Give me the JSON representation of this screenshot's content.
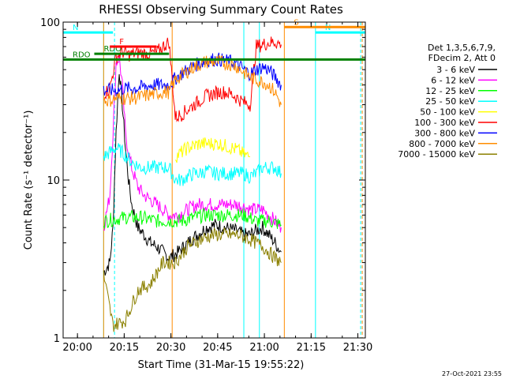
{
  "chart_data": {
    "type": "line",
    "title": "RHESSI Observing Summary Count Rates",
    "xlabel": "Start Time (31-Mar-15 19:55:22)",
    "ylabel": "Count Rate (s⁻¹ detector⁻¹)",
    "yscale": "log",
    "ylim": [
      1,
      100
    ],
    "xlim_minutes_after_start": [
      0,
      97
    ],
    "x_ticks": [
      {
        "label": "20:00",
        "t": 4.6
      },
      {
        "label": "20:15",
        "t": 19.6
      },
      {
        "label": "20:30",
        "t": 34.6
      },
      {
        "label": "20:45",
        "t": 49.6
      },
      {
        "label": "21:00",
        "t": 64.6
      },
      {
        "label": "21:15",
        "t": 79.6
      },
      {
        "label": "21:30",
        "t": 94.6
      }
    ],
    "y_ticks": [
      "1",
      "10",
      "100"
    ],
    "legend_header": [
      "Det 1,3,5,6,7,9,",
      "FDecim 2, Att 0"
    ],
    "legend_position": "right",
    "data_gaps_minutes": [
      [
        0,
        13
      ],
      [
        70,
        97
      ]
    ],
    "series": [
      {
        "name": "3 - 6 keV",
        "color": "#000000",
        "points": [
          [
            13,
            2.6
          ],
          [
            15,
            3.0
          ],
          [
            16,
            5
          ],
          [
            17,
            20
          ],
          [
            18,
            50
          ],
          [
            19,
            30
          ],
          [
            20,
            16
          ],
          [
            21,
            10
          ],
          [
            22,
            7
          ],
          [
            24,
            5
          ],
          [
            26,
            4.5
          ],
          [
            28,
            4
          ],
          [
            30,
            3.8
          ],
          [
            32,
            3.5
          ],
          [
            34,
            3.2
          ],
          [
            37,
            3.5
          ],
          [
            40,
            4
          ],
          [
            43,
            4.5
          ],
          [
            46,
            5
          ],
          [
            49,
            5.2
          ],
          [
            52,
            5
          ],
          [
            55,
            4.8
          ],
          [
            58,
            4.5
          ],
          [
            60,
            4.5
          ],
          [
            62,
            4.8
          ],
          [
            64,
            5
          ],
          [
            66,
            4.5
          ],
          [
            68,
            4
          ],
          [
            70,
            3.5
          ]
        ]
      },
      {
        "name": "6 - 12 keV",
        "color": "#ff00ff",
        "points": [
          [
            13,
            5
          ],
          [
            15,
            8
          ],
          [
            16,
            20
          ],
          [
            17,
            55
          ],
          [
            18,
            60
          ],
          [
            19,
            40
          ],
          [
            20,
            20
          ],
          [
            21,
            15
          ],
          [
            22,
            12
          ],
          [
            24,
            9
          ],
          [
            26,
            8
          ],
          [
            28,
            7.5
          ],
          [
            30,
            7
          ],
          [
            32,
            6.5
          ],
          [
            34,
            6
          ],
          [
            37,
            6
          ],
          [
            40,
            6.5
          ],
          [
            43,
            7
          ],
          [
            46,
            7
          ],
          [
            49,
            7
          ],
          [
            52,
            7
          ],
          [
            55,
            7
          ],
          [
            58,
            6.8
          ],
          [
            60,
            6.5
          ],
          [
            62,
            6.5
          ],
          [
            64,
            6.5
          ],
          [
            66,
            6
          ],
          [
            68,
            5.5
          ],
          [
            70,
            5
          ]
        ]
      },
      {
        "name": "12 - 25 keV",
        "color": "#00ff00",
        "points": [
          [
            13,
            5.5
          ],
          [
            20,
            5.8
          ],
          [
            25,
            5.8
          ],
          [
            30,
            5.5
          ],
          [
            34,
            5.5
          ],
          [
            38,
            5.5
          ],
          [
            42,
            5.8
          ],
          [
            46,
            6
          ],
          [
            50,
            6
          ],
          [
            54,
            6
          ],
          [
            58,
            6
          ],
          [
            62,
            5.5
          ],
          [
            66,
            5.5
          ],
          [
            70,
            5.2
          ]
        ]
      },
      {
        "name": "25 - 50 keV",
        "color": "#00ffff",
        "points": [
          [
            13,
            14
          ],
          [
            15,
            15
          ],
          [
            17,
            16
          ],
          [
            19,
            15
          ],
          [
            22,
            13
          ],
          [
            25,
            12
          ],
          [
            28,
            12
          ],
          [
            31,
            12
          ],
          [
            34,
            12
          ],
          [
            36,
            10
          ],
          [
            38,
            10
          ],
          [
            40,
            10.5
          ],
          [
            42,
            11
          ],
          [
            44,
            11
          ],
          [
            46,
            11.5
          ],
          [
            48,
            11
          ],
          [
            50,
            11
          ],
          [
            52,
            11
          ],
          [
            54,
            11
          ],
          [
            56,
            11
          ],
          [
            58,
            11
          ],
          [
            60,
            10.5
          ],
          [
            62,
            11
          ],
          [
            64,
            12
          ],
          [
            66,
            12
          ],
          [
            68,
            12
          ],
          [
            70,
            11
          ]
        ]
      },
      {
        "name": "50 - 100 keV",
        "color": "#ffff00",
        "points": [
          [
            36,
            14
          ],
          [
            38,
            15
          ],
          [
            40,
            16
          ],
          [
            42,
            16.5
          ],
          [
            44,
            17
          ],
          [
            46,
            17
          ],
          [
            48,
            17
          ],
          [
            50,
            17
          ],
          [
            52,
            16.5
          ],
          [
            54,
            16
          ],
          [
            56,
            15.5
          ],
          [
            58,
            14.5
          ],
          [
            60,
            14
          ]
        ]
      },
      {
        "name": "100 - 300 keV",
        "color": "#ff0000",
        "points": [
          [
            13,
            35
          ],
          [
            15,
            38
          ],
          [
            17,
            60
          ],
          [
            19,
            65
          ],
          [
            21,
            62
          ],
          [
            24,
            64
          ],
          [
            27,
            63
          ],
          [
            30,
            64
          ],
          [
            32,
            70
          ],
          [
            34,
            75
          ],
          [
            36,
            25
          ],
          [
            38,
            26
          ],
          [
            40,
            28
          ],
          [
            42,
            30
          ],
          [
            44,
            32
          ],
          [
            46,
            34
          ],
          [
            48,
            35
          ],
          [
            50,
            36
          ],
          [
            52,
            36
          ],
          [
            54,
            35
          ],
          [
            56,
            33
          ],
          [
            58,
            31
          ],
          [
            60,
            30
          ],
          [
            62,
            70
          ],
          [
            64,
            72
          ],
          [
            66,
            74
          ],
          [
            68,
            75
          ],
          [
            70,
            72
          ]
        ]
      },
      {
        "name": "300 - 800 keV",
        "color": "#0000ff",
        "points": [
          [
            13,
            37
          ],
          [
            15,
            37
          ],
          [
            17,
            37
          ],
          [
            20,
            38
          ],
          [
            23,
            38
          ],
          [
            26,
            39
          ],
          [
            29,
            40
          ],
          [
            32,
            40
          ],
          [
            34,
            40
          ],
          [
            36,
            44
          ],
          [
            38,
            47
          ],
          [
            40,
            50
          ],
          [
            42,
            53
          ],
          [
            44,
            55
          ],
          [
            46,
            57
          ],
          [
            48,
            58
          ],
          [
            50,
            58
          ],
          [
            52,
            57
          ],
          [
            54,
            56
          ],
          [
            56,
            54
          ],
          [
            58,
            50
          ],
          [
            60,
            47
          ],
          [
            62,
            50
          ],
          [
            64,
            52
          ],
          [
            66,
            50
          ],
          [
            68,
            45
          ],
          [
            70,
            40
          ]
        ]
      },
      {
        "name": "800 - 7000 keV",
        "color": "#ff8c00",
        "points": [
          [
            13,
            32
          ],
          [
            15,
            32
          ],
          [
            17,
            33
          ],
          [
            20,
            33
          ],
          [
            23,
            33
          ],
          [
            26,
            34
          ],
          [
            29,
            35
          ],
          [
            32,
            36
          ],
          [
            34,
            36
          ],
          [
            36,
            43
          ],
          [
            38,
            46
          ],
          [
            40,
            49
          ],
          [
            42,
            52
          ],
          [
            44,
            54
          ],
          [
            46,
            56
          ],
          [
            48,
            56
          ],
          [
            50,
            56
          ],
          [
            52,
            55
          ],
          [
            54,
            54
          ],
          [
            56,
            52
          ],
          [
            58,
            48
          ],
          [
            60,
            45
          ],
          [
            62,
            43
          ],
          [
            64,
            42
          ],
          [
            66,
            40
          ],
          [
            68,
            36
          ],
          [
            70,
            30
          ]
        ]
      },
      {
        "name": "7000 - 15000 keV",
        "color": "#8b8000",
        "points": [
          [
            13,
            2.5
          ],
          [
            16,
            1.2
          ],
          [
            20,
            1.3
          ],
          [
            24,
            2.0
          ],
          [
            28,
            2.2
          ],
          [
            32,
            3.0
          ],
          [
            36,
            3.0
          ],
          [
            40,
            3.8
          ],
          [
            44,
            4.2
          ],
          [
            48,
            4.5
          ],
          [
            52,
            4.5
          ],
          [
            56,
            4.5
          ],
          [
            60,
            4.2
          ],
          [
            64,
            3.8
          ],
          [
            66,
            3.5
          ],
          [
            68,
            3.2
          ],
          [
            70,
            3.0
          ]
        ]
      }
    ],
    "flags": [
      {
        "label": "RDO",
        "color": "#008000",
        "start": 0,
        "end": 97,
        "level": 58
      },
      {
        "label": "RDO",
        "color": "#008000",
        "start": 10,
        "end": 34,
        "level": 63
      },
      {
        "label": "F",
        "color": "#ff0000",
        "start": 15,
        "end": 30,
        "level": 70
      },
      {
        "label": "N",
        "color": "#00ffff",
        "start": 0,
        "end": 16,
        "level": 86
      },
      {
        "label": "N",
        "color": "#00ffff",
        "start": 81,
        "end": 97,
        "level": 86
      },
      {
        "label": "S",
        "color": "#ff8c00",
        "start": 71,
        "end": 97,
        "level": 93
      }
    ],
    "vertical_markers": [
      {
        "t": 0.0,
        "color": "#00ffff",
        "style": "solid"
      },
      {
        "t": 13.0,
        "color": "#00ffff",
        "style": "solid"
      },
      {
        "t": 16.5,
        "color": "#00ffff",
        "style": "dashed"
      },
      {
        "t": 13.0,
        "color": "#ff8c00",
        "style": "solid"
      },
      {
        "t": 35.0,
        "color": "#ff8c00",
        "style": "solid"
      },
      {
        "t": 58.0,
        "color": "#00ffff",
        "style": "solid"
      },
      {
        "t": 63.0,
        "color": "#00ffff",
        "style": "solid"
      },
      {
        "t": 71.0,
        "color": "#ff8c00",
        "style": "solid"
      },
      {
        "t": 81.0,
        "color": "#00ffff",
        "style": "solid"
      },
      {
        "t": 95.5,
        "color": "#00ffff",
        "style": "dashed"
      },
      {
        "t": 96.0,
        "color": "#ff8c00",
        "style": "dashed"
      }
    ]
  },
  "footer_timestamp": "27-Oct-2021 23:55"
}
